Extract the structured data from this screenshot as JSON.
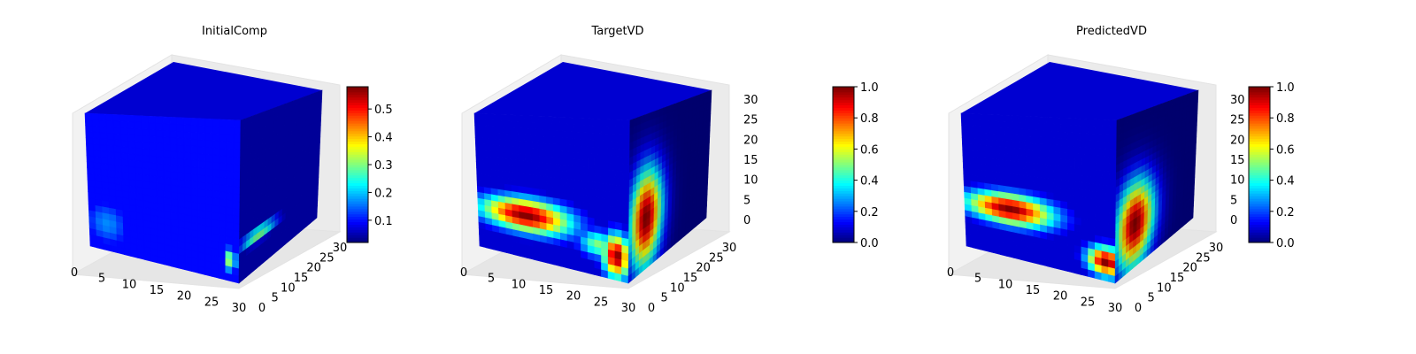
{
  "chart_data": [
    {
      "type": "heatmap",
      "title": "InitialComp",
      "x_ticks": [
        "0",
        "5",
        "10",
        "15",
        "20",
        "25",
        "30"
      ],
      "y_ticks": [
        "0",
        "5",
        "10",
        "15",
        "20",
        "25",
        "30"
      ],
      "z_ticks": [],
      "colorbar": {
        "ticks": [
          "0.1",
          "0.2",
          "0.3",
          "0.4",
          "0.5"
        ],
        "range": [
          0.02,
          0.58
        ]
      },
      "colormap": "jet",
      "blobs": {
        "front": [
          {
            "cx": 0.12,
            "cy": 0.2,
            "rx": 0.17,
            "ry": 0.19,
            "v": 0.26
          }
        ],
        "corner_front": [
          {
            "cx": 0.94,
            "cy": 0.13,
            "rx": 0.05,
            "ry": 0.08,
            "v": 0.55
          }
        ],
        "side": [
          {
            "cx": 0.25,
            "cy": 0.22,
            "rx": 0.25,
            "ry": 0.05,
            "v": 0.55
          }
        ]
      },
      "base": 0.05
    },
    {
      "type": "heatmap",
      "title": "TargetVD",
      "x_ticks": [
        "0",
        "5",
        "10",
        "15",
        "20",
        "25",
        "30"
      ],
      "y_ticks": [
        "0",
        "5",
        "10",
        "15",
        "20",
        "25",
        "30"
      ],
      "z_ticks": [
        "0",
        "5",
        "10",
        "15",
        "20",
        "25",
        "30"
      ],
      "colorbar": {
        "ticks": [
          "0.0",
          "0.2",
          "0.4",
          "0.6",
          "0.8",
          "1.0"
        ],
        "range": [
          0.0,
          1.0
        ]
      },
      "colormap": "jet",
      "blobs": {
        "front": [
          {
            "cx": 0.32,
            "cy": 0.3,
            "rx": 0.33,
            "ry": 0.13,
            "v": 1.0
          },
          {
            "cx": 0.8,
            "cy": 0.2,
            "rx": 0.15,
            "ry": 0.1,
            "v": 0.5
          }
        ],
        "corner_front": [
          {
            "cx": 0.92,
            "cy": 0.15,
            "rx": 0.1,
            "ry": 0.15,
            "v": 1.0
          }
        ],
        "side": [
          {
            "cx": 0.22,
            "cy": 0.33,
            "rx": 0.22,
            "ry": 0.34,
            "v": 1.0
          }
        ]
      },
      "base": 0.0
    },
    {
      "type": "heatmap",
      "title": "PredictedVD",
      "x_ticks": [
        "0",
        "5",
        "10",
        "15",
        "20",
        "25",
        "30"
      ],
      "y_ticks": [
        "0",
        "5",
        "10",
        "15",
        "20",
        "25",
        "30"
      ],
      "z_ticks": [
        "0",
        "5",
        "10",
        "15",
        "20",
        "25",
        "30"
      ],
      "colorbar": {
        "ticks": [
          "0.0",
          "0.2",
          "0.4",
          "0.6",
          "0.8",
          "1.0"
        ],
        "range": [
          0.0,
          1.0
        ]
      },
      "colormap": "jet",
      "blobs": {
        "front": [
          {
            "cx": 0.3,
            "cy": 0.34,
            "rx": 0.32,
            "ry": 0.12,
            "v": 1.0
          }
        ],
        "corner_front": [
          {
            "cx": 0.94,
            "cy": 0.12,
            "rx": 0.14,
            "ry": 0.1,
            "v": 1.0
          }
        ],
        "side": [
          {
            "cx": 0.25,
            "cy": 0.28,
            "rx": 0.26,
            "ry": 0.3,
            "v": 1.0
          }
        ]
      },
      "base": 0.0
    }
  ]
}
